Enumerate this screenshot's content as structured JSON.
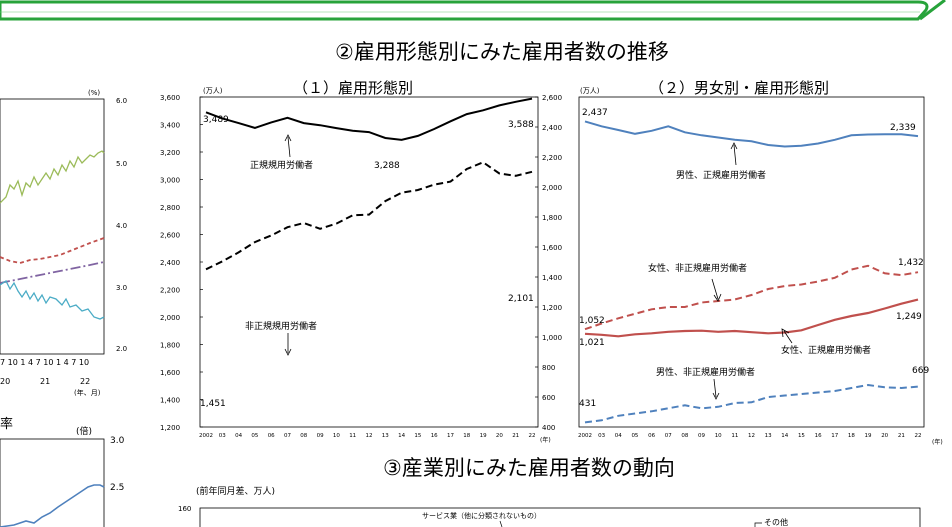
{
  "page": {
    "title2": "②雇用形態別にみた雇用者数の推移",
    "title3": "③産業別にみた雇用者数の動向"
  },
  "left_partial": {
    "unit_pct": "(%)",
    "right_ticks": [
      "6.0",
      "5.0",
      "4.0",
      "3.0",
      "2.0"
    ],
    "month_ticks": "7 10 1 4 7 10 1 4 7 10",
    "year_labels": [
      "20",
      "21",
      "22"
    ],
    "axis_suffix": "(年、月)",
    "lower_label": "率",
    "lower_unit": "(倍)",
    "lower_ticks": [
      "3.0",
      "2.5"
    ],
    "colors": {
      "green": "#9bbb59",
      "red": "#c0504d",
      "purple": "#8064a2",
      "teal": "#4bacc6",
      "blue": "#4f81bd"
    }
  },
  "chart_data": [
    {
      "type": "line",
      "title": "（１）雇用形態別",
      "unit_left": "(万人)",
      "x_unit": "(年)",
      "x": [
        "2002",
        "03",
        "04",
        "05",
        "06",
        "07",
        "08",
        "09",
        "10",
        "11",
        "12",
        "13",
        "14",
        "15",
        "16",
        "17",
        "18",
        "19",
        "20",
        "21",
        "22"
      ],
      "left_axis": {
        "range": [
          1200,
          3600
        ],
        "ticks": [
          "1,200",
          "1,400",
          "1,600",
          "1,800",
          "2,000",
          "2,200",
          "2,400",
          "2,600",
          "2,800",
          "3,000",
          "3,200",
          "3,400",
          "3,600"
        ]
      },
      "right_axis": {
        "range": [
          400,
          2600
        ],
        "ticks": [
          "400",
          "600",
          "800",
          "1,000",
          "1,200",
          "1,400",
          "1,600",
          "1,800",
          "2,000",
          "2,200",
          "2,400",
          "2,600"
        ]
      },
      "series": [
        {
          "name": "正規規用労働者",
          "axis": "left",
          "style": "solid",
          "color": "#000000",
          "values": [
            3489,
            3444,
            3410,
            3375,
            3415,
            3449,
            3410,
            3395,
            3374,
            3355,
            3345,
            3302,
            3288,
            3317,
            3367,
            3423,
            3476,
            3503,
            3539,
            3565,
            3588
          ]
        },
        {
          "name": "非正規規用労働者",
          "axis": "right",
          "style": "dashed",
          "color": "#000000",
          "values": [
            1451,
            1504,
            1564,
            1633,
            1677,
            1732,
            1760,
            1721,
            1756,
            1811,
            1816,
            1906,
            1962,
            1980,
            2016,
            2036,
            2120,
            2165,
            2090,
            2075,
            2101
          ]
        }
      ],
      "data_labels": [
        "3,489",
        "3,588",
        "3,288",
        "1,451",
        "2,101"
      ]
    },
    {
      "type": "line",
      "title": "（２）男女別・雇用形態別",
      "unit_left": "(万人)",
      "x_unit": "(年)",
      "x": [
        "2002",
        "03",
        "04",
        "05",
        "06",
        "07",
        "08",
        "09",
        "10",
        "11",
        "12",
        "13",
        "14",
        "15",
        "16",
        "17",
        "18",
        "19",
        "20",
        "21",
        "22"
      ],
      "y_range": [
        400,
        2600
      ],
      "series": [
        {
          "name": "男性、正規雇用労働者",
          "style": "solid",
          "color": "#4f81bd",
          "values": [
            2437,
            2405,
            2380,
            2355,
            2375,
            2405,
            2365,
            2345,
            2330,
            2315,
            2305,
            2280,
            2270,
            2275,
            2290,
            2315,
            2345,
            2350,
            2352,
            2352,
            2339
          ]
        },
        {
          "name": "女性、非正規雇用労働者",
          "style": "dashed",
          "color": "#c0504d",
          "values": [
            1052,
            1090,
            1125,
            1155,
            1185,
            1200,
            1200,
            1230,
            1240,
            1250,
            1280,
            1320,
            1340,
            1350,
            1370,
            1395,
            1450,
            1475,
            1425,
            1413,
            1432
          ]
        },
        {
          "name": "女性、正規雇用労働者",
          "style": "solid",
          "color": "#c0504d",
          "values": [
            1021,
            1015,
            1005,
            1018,
            1025,
            1035,
            1040,
            1042,
            1035,
            1040,
            1032,
            1025,
            1030,
            1045,
            1080,
            1115,
            1140,
            1160,
            1190,
            1222,
            1249
          ]
        },
        {
          "name": "男性、非正規雇用労働者",
          "style": "dashed",
          "color": "#4f81bd",
          "values": [
            431,
            445,
            475,
            490,
            505,
            525,
            545,
            525,
            535,
            560,
            565,
            600,
            610,
            620,
            630,
            640,
            660,
            680,
            665,
            660,
            669
          ]
        }
      ],
      "data_labels": [
        "2,437",
        "2,339",
        "1,052",
        "1,432",
        "1,021",
        "1,249",
        "431",
        "669"
      ]
    },
    {
      "type": "bar",
      "title": "③産業別にみた雇用者数の動向",
      "unit": "(前年同月差、万人)",
      "y_ticks": [
        "160"
      ],
      "annotations": [
        "サービス業（他に分類されないもの）",
        "その他"
      ]
    }
  ]
}
